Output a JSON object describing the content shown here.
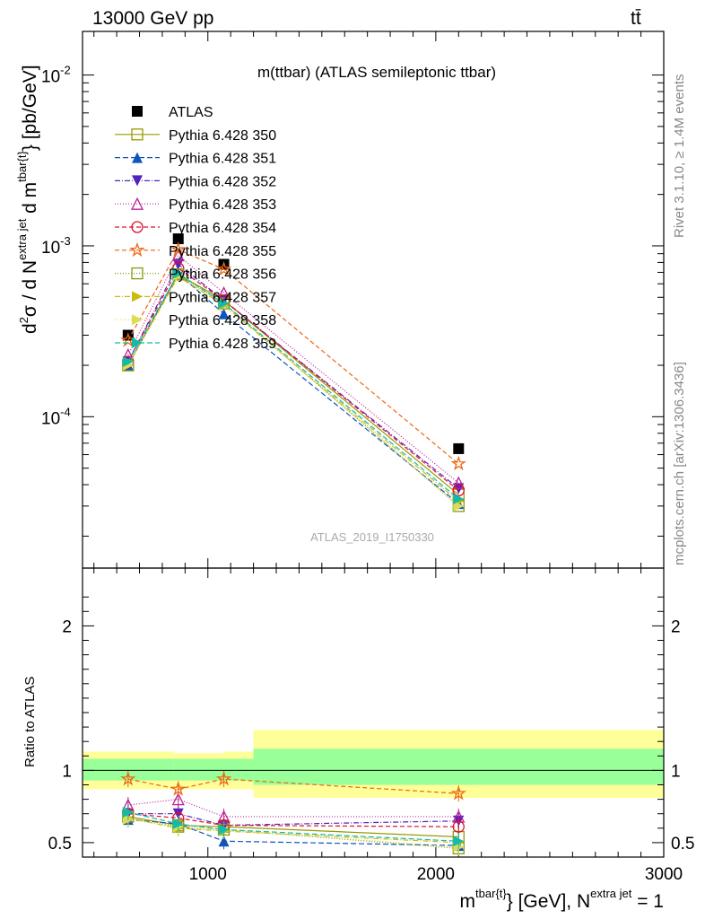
{
  "header": {
    "left": "13000 GeV pp",
    "right": "tt̄"
  },
  "side_texts": {
    "rivet": "Rivet 3.1.10, ≥ 1.4M events",
    "mcplots": "mcplots.cern.ch [arXiv:1306.3436]"
  },
  "chart_data": [
    {
      "type": "line",
      "title": "m(ttbar) (ATLAS semileptonic ttbar)",
      "watermark": "ATLAS_2019_I1750330",
      "ylabel": "d²σ / d N^{extra jet} d m^{tbar{t}} [pb/GeV]",
      "ylabel_parts": {
        "a": "d",
        "b": "2",
        "c": "σ / d N",
        "d": "extra jet",
        "e": " d m",
        "f": "tbar{t}",
        "g": "} [pb/GeV]"
      },
      "yscale": "log",
      "ylim": [
        1.3e-05,
        0.018
      ],
      "xlim": [
        450,
        3000
      ],
      "y_tick_labels": [
        "10^-4",
        "10^-3",
        "10^-2"
      ],
      "x": [
        650,
        870,
        1070,
        2100
      ],
      "x_bins": [
        [
          450,
          850
        ],
        [
          850,
          1070
        ],
        [
          1070,
          1200
        ],
        [
          1200,
          3000
        ]
      ],
      "legend": {
        "position": "top-left"
      },
      "series": [
        {
          "name": "ATLAS",
          "color": "#000000",
          "marker": "square-filled",
          "dash": "none",
          "values": [
            0.0003,
            0.0011,
            0.00078,
            6.5e-05
          ]
        },
        {
          "name": "Pythia 6.428 350",
          "color": "#999900",
          "marker": "square-open",
          "dash": "solid",
          "values": [
            0.0002,
            0.00068,
            0.00048,
            3.5e-05
          ]
        },
        {
          "name": "Pythia 6.428 351",
          "color": "#1155bb",
          "marker": "triangle-up-filled",
          "dash": "6,3",
          "values": [
            0.0002,
            0.00069,
            0.0004,
            3.1e-05
          ]
        },
        {
          "name": "Pythia 6.428 352",
          "color": "#5522bb",
          "marker": "triangle-down-filled",
          "dash": "6,2,1,2",
          "values": [
            0.00021,
            0.00078,
            0.00048,
            3.8e-05
          ]
        },
        {
          "name": "Pythia 6.428 353",
          "color": "#bb2299",
          "marker": "triangle-up-open",
          "dash": "1,2",
          "values": [
            0.00023,
            0.00088,
            0.00053,
            4.1e-05
          ]
        },
        {
          "name": "Pythia 6.428 354",
          "color": "#dd1133",
          "marker": "circle-open",
          "dash": "5,3",
          "values": [
            0.00021,
            0.00074,
            0.00048,
            3.7e-05
          ]
        },
        {
          "name": "Pythia 6.428 355",
          "color": "#ee6611",
          "marker": "star-open",
          "dash": "5,3",
          "values": [
            0.00028,
            0.00095,
            0.00073,
            5.3e-05
          ]
        },
        {
          "name": "Pythia 6.428 356",
          "color": "#889911",
          "marker": "square-open",
          "dash": "1,2",
          "values": [
            0.0002,
            0.00068,
            0.00046,
            3e-05
          ]
        },
        {
          "name": "Pythia 6.428 357",
          "color": "#ccbb11",
          "marker": "triangle-right",
          "dash": "6,2,1,2",
          "values": [
            0.0002,
            0.00066,
            0.00045,
            3.2e-05
          ]
        },
        {
          "name": "Pythia 6.428 358",
          "color": "#dddd55",
          "marker": "none",
          "dash": "1,2",
          "values": [
            0.0002,
            0.00067,
            0.00046,
            3e-05
          ]
        },
        {
          "name": "Pythia 6.428 359",
          "color": "#11bbaa",
          "marker": "none",
          "dash": "6,3",
          "values": [
            0.00021,
            0.00069,
            0.00046,
            3.3e-05
          ]
        }
      ]
    },
    {
      "type": "line",
      "ylabel": "Ratio to ATLAS",
      "xlabel": "m^{tbar{t}} [GeV], N^{extra jet} = 1",
      "xlabel_parts": {
        "a": "m",
        "b": "tbar{t}",
        "c": "} [GeV], N",
        "d": "extra jet",
        "e": " = 1"
      },
      "ylim": [
        0.4,
        2.4
      ],
      "xlim": [
        450,
        3000
      ],
      "x_tick_labels": [
        "1000",
        "2000",
        "3000"
      ],
      "y_tick_labels": [
        "0.5",
        "1",
        "2"
      ],
      "x": [
        650,
        870,
        1070,
        2100
      ],
      "bands": [
        {
          "x0": 450,
          "x1": 850,
          "inner": [
            0.93,
            1.08
          ],
          "outer": [
            0.87,
            1.13
          ]
        },
        {
          "x0": 850,
          "x1": 1070,
          "inner": [
            0.93,
            1.08
          ],
          "outer": [
            0.87,
            1.12
          ]
        },
        {
          "x0": 1070,
          "x1": 1200,
          "inner": [
            0.93,
            1.08
          ],
          "outer": [
            0.87,
            1.13
          ]
        },
        {
          "x0": 1200,
          "x1": 3000,
          "inner": [
            0.9,
            1.15
          ],
          "outer": [
            0.81,
            1.28
          ]
        }
      ],
      "series": [
        {
          "name": "Pythia 6.428 350",
          "values": [
            0.68,
            0.62,
            0.61,
            0.54
          ]
        },
        {
          "name": "Pythia 6.428 351",
          "values": [
            0.66,
            0.63,
            0.51,
            0.48
          ]
        },
        {
          "name": "Pythia 6.428 352",
          "values": [
            0.7,
            0.7,
            0.62,
            0.65
          ]
        },
        {
          "name": "Pythia 6.428 353",
          "values": [
            0.76,
            0.8,
            0.68,
            0.68
          ]
        },
        {
          "name": "Pythia 6.428 354",
          "values": [
            0.7,
            0.67,
            0.62,
            0.61
          ]
        },
        {
          "name": "Pythia 6.428 355",
          "values": [
            0.94,
            0.87,
            0.94,
            0.84
          ]
        },
        {
          "name": "Pythia 6.428 356",
          "values": [
            0.68,
            0.61,
            0.59,
            0.46
          ]
        },
        {
          "name": "Pythia 6.428 357",
          "values": [
            0.67,
            0.6,
            0.58,
            0.5
          ]
        },
        {
          "name": "Pythia 6.428 358",
          "values": [
            0.66,
            0.61,
            0.59,
            0.47
          ]
        },
        {
          "name": "Pythia 6.428 359",
          "values": [
            0.71,
            0.63,
            0.59,
            0.51
          ]
        }
      ]
    }
  ]
}
